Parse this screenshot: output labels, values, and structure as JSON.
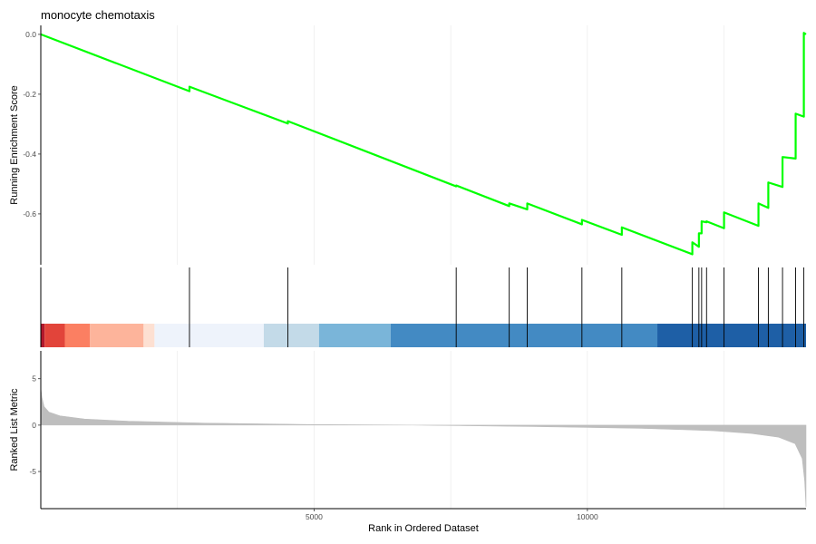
{
  "chart_data": {
    "type": "line",
    "title": "monocyte chemotaxis",
    "n_genes": 14000,
    "es": {
      "ylabel": "Running Enrichment Score",
      "ylim": [
        -0.77,
        0.03
      ],
      "yticks": [
        0.0,
        -0.2,
        -0.4,
        -0.6
      ],
      "ytick_labels": [
        "0.0",
        "-0.2",
        "-0.4",
        "-0.6"
      ],
      "line_color": "#00FF00",
      "hit_ranks": [
        2720,
        4520,
        7600,
        8570,
        8900,
        9900,
        10630,
        11920,
        12040,
        12090,
        12180,
        12500,
        13130,
        13310,
        13570,
        13810,
        13960
      ],
      "hit_es_after": [
        -0.175,
        -0.29,
        -0.505,
        -0.565,
        -0.565,
        -0.62,
        -0.645,
        -0.695,
        -0.665,
        -0.625,
        -0.625,
        -0.595,
        -0.565,
        -0.495,
        -0.41,
        -0.265,
        0.005
      ],
      "es_before_hit": [
        -0.19,
        -0.298,
        -0.508,
        -0.574,
        -0.585,
        -0.635,
        -0.67,
        -0.735,
        -0.71,
        -0.665,
        -0.628,
        -0.648,
        -0.64,
        -0.58,
        -0.51,
        -0.415,
        -0.275
      ],
      "end_value": 0.0
    },
    "rank_bar": {
      "segments": [
        {
          "from": 0,
          "to": 70,
          "color": "#B2182B"
        },
        {
          "from": 70,
          "to": 440,
          "color": "#E2443A"
        },
        {
          "from": 440,
          "to": 900,
          "color": "#FB7F62"
        },
        {
          "from": 900,
          "to": 1880,
          "color": "#FDB49B"
        },
        {
          "from": 1880,
          "to": 2080,
          "color": "#FDE0D2"
        },
        {
          "from": 2080,
          "to": 4080,
          "color": "#EEF3FB"
        },
        {
          "from": 4080,
          "to": 5090,
          "color": "#C3DAE8"
        },
        {
          "from": 5090,
          "to": 6400,
          "color": "#7AB5D9"
        },
        {
          "from": 6400,
          "to": 11280,
          "color": "#438AC3"
        },
        {
          "from": 11280,
          "to": 14000,
          "color": "#1E5FA6"
        }
      ]
    },
    "ranked_metric": {
      "ylabel": "Ranked List Metric",
      "ylim": [
        -9.0,
        8.0
      ],
      "yticks": [
        5,
        0,
        -5
      ],
      "ytick_labels": [
        "5",
        "0",
        "-5"
      ],
      "fill_color": "#BEBEBE",
      "curve": [
        [
          0,
          4.0
        ],
        [
          20,
          3.0
        ],
        [
          60,
          2.0
        ],
        [
          150,
          1.4
        ],
        [
          350,
          1.0
        ],
        [
          800,
          0.65
        ],
        [
          1600,
          0.42
        ],
        [
          3000,
          0.22
        ],
        [
          5000,
          0.06
        ],
        [
          6800,
          0.0
        ],
        [
          9000,
          -0.15
        ],
        [
          11000,
          -0.35
        ],
        [
          12300,
          -0.6
        ],
        [
          13000,
          -0.9
        ],
        [
          13500,
          -1.3
        ],
        [
          13800,
          -2.0
        ],
        [
          13930,
          -3.6
        ],
        [
          13975,
          -6.0
        ],
        [
          14000,
          -8.8
        ]
      ]
    },
    "x": {
      "label": "Rank in Ordered Dataset",
      "ticks": [
        5000,
        10000
      ],
      "tick_labels": [
        "5000",
        "10000"
      ]
    },
    "grid": true
  }
}
